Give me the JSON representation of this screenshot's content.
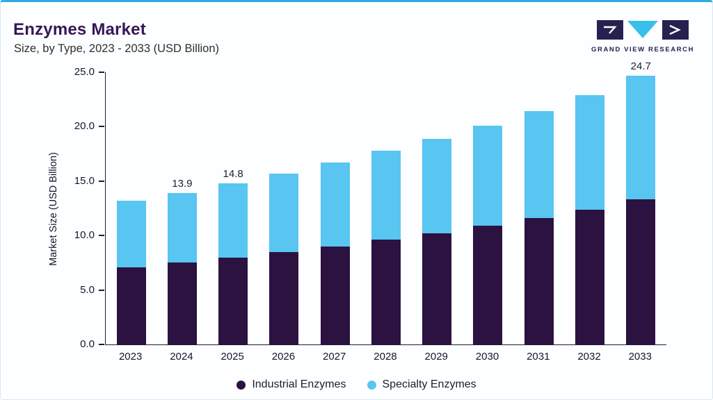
{
  "header": {
    "title": "Enzymes Market",
    "subtitle": "Size, by Type, 2023 - 2033 (USD Billion)",
    "logo_text": "GRAND VIEW RESEARCH"
  },
  "chart_data": {
    "type": "bar",
    "stacked": true,
    "title": "Enzymes Market",
    "subtitle": "Size, by Type, 2023 - 2033 (USD Billion)",
    "categories": [
      "2023",
      "2024",
      "2025",
      "2026",
      "2027",
      "2028",
      "2029",
      "2030",
      "2031",
      "2032",
      "2033"
    ],
    "series": [
      {
        "name": "Industrial Enzymes",
        "color": "#2b1240",
        "values": [
          7.1,
          7.5,
          8.0,
          8.5,
          9.0,
          9.6,
          10.2,
          10.9,
          11.6,
          12.4,
          13.3
        ]
      },
      {
        "name": "Specialty Enzymes",
        "color": "#59c5f1",
        "values": [
          6.1,
          6.4,
          6.8,
          7.2,
          7.7,
          8.2,
          8.7,
          9.2,
          9.8,
          10.5,
          11.4
        ]
      }
    ],
    "totals": [
      13.2,
      13.9,
      14.8,
      15.7,
      16.7,
      17.8,
      18.9,
      20.1,
      21.4,
      22.9,
      24.7
    ],
    "bar_value_labels": [
      "",
      "13.9",
      "14.8",
      "",
      "",
      "",
      "",
      "",
      "",
      "",
      "24.7"
    ],
    "xlabel": "",
    "ylabel": "Market Size (USD Billion)",
    "ylim": [
      0,
      25
    ],
    "ytick_labels": [
      "0.0",
      "5.0",
      "10.0",
      "15.0",
      "20.0",
      "25.0"
    ],
    "grid": false,
    "legend_position": "bottom"
  },
  "colors": {
    "accent_top": "#2aace3",
    "title": "#351758",
    "axis": "#1b1b33",
    "industrial": "#2b1240",
    "specialty": "#59c5f1"
  }
}
